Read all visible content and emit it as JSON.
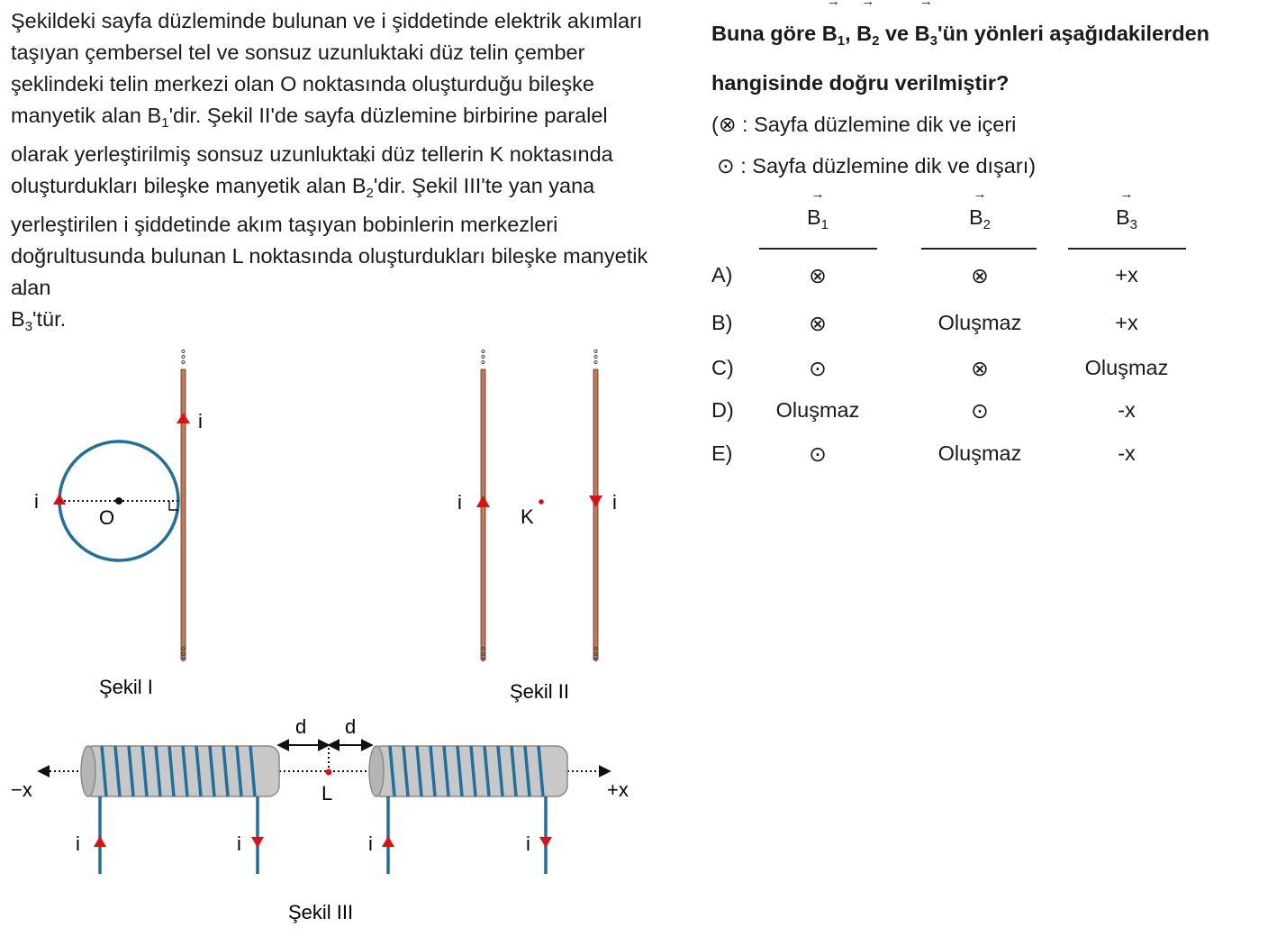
{
  "question": {
    "p1": "Şekildeki sayfa düzleminde bulunan ve i şiddetinde elektrik akımları taşıyan çembersel tel ve sonsuz uzunluktaki düz telin çember şeklindeki telin merkezi olan O noktasında oluşturduğu bileşke manyetik alan ",
    "b1": "B",
    "b1_sub": "1",
    "p2": "'dir. Şekil II'de sayfa düzlemine birbirine paralel olarak yerleştirilmiş sonsuz uzunluktaki düz tellerin K noktasında oluşturdukları bileşke manyetik alan ",
    "b2": "B",
    "b2_sub": "2",
    "p3": "'dir. Şekil III'te yan yana yerleştirilen i şiddetinde akım taşıyan bobinlerin merkezleri doğrultusunda bulunan L noktasında oluşturdukları bileşke manyetik alan ",
    "b3": "B",
    "b3_sub": "3",
    "p4": "'tür."
  },
  "ask": {
    "pre": "Buna göre ",
    "sep1": ", ",
    "sep2": " ve ",
    "post": "'ün yönleri aşağıdakilerden hangisinde doğru verilmiştir?"
  },
  "legend": {
    "into": "(⊗ : Sayfa düzlemine dik ve içeri",
    "out": "⊙ : Sayfa düzlemine dik ve dışarı)"
  },
  "table": {
    "headers": [
      "B",
      "B",
      "B"
    ],
    "header_subs": [
      "1",
      "2",
      "3"
    ],
    "rows": [
      {
        "option": "A)",
        "b1": "⊗",
        "b2": "⊗",
        "b3": "+x"
      },
      {
        "option": "B)",
        "b1": "⊗",
        "b2": "Oluşmaz",
        "b3": "+x"
      },
      {
        "option": "C)",
        "b1": "⊙",
        "b2": "⊗",
        "b3": "Oluşmaz"
      },
      {
        "option": "D)",
        "b1": "Oluşmaz",
        "b2": "⊙",
        "b3": "-x"
      },
      {
        "option": "E)",
        "b1": "⊙",
        "b2": "Oluşmaz",
        "b3": "-x"
      }
    ]
  },
  "figures": {
    "fig1": {
      "caption": "Şekil I",
      "current": "i",
      "center": "O"
    },
    "fig2": {
      "caption": "Şekil II",
      "current": "i",
      "point": "K"
    },
    "fig3": {
      "caption": "Şekil III",
      "current": "i",
      "point": "L",
      "distance": "d",
      "neg_x": "−x",
      "pos_x": "+x"
    }
  },
  "colors": {
    "wire": "#c07a55",
    "coil": "#1f6f9f",
    "arrow": "#e01010",
    "solenoid": "#c8c8c8"
  }
}
